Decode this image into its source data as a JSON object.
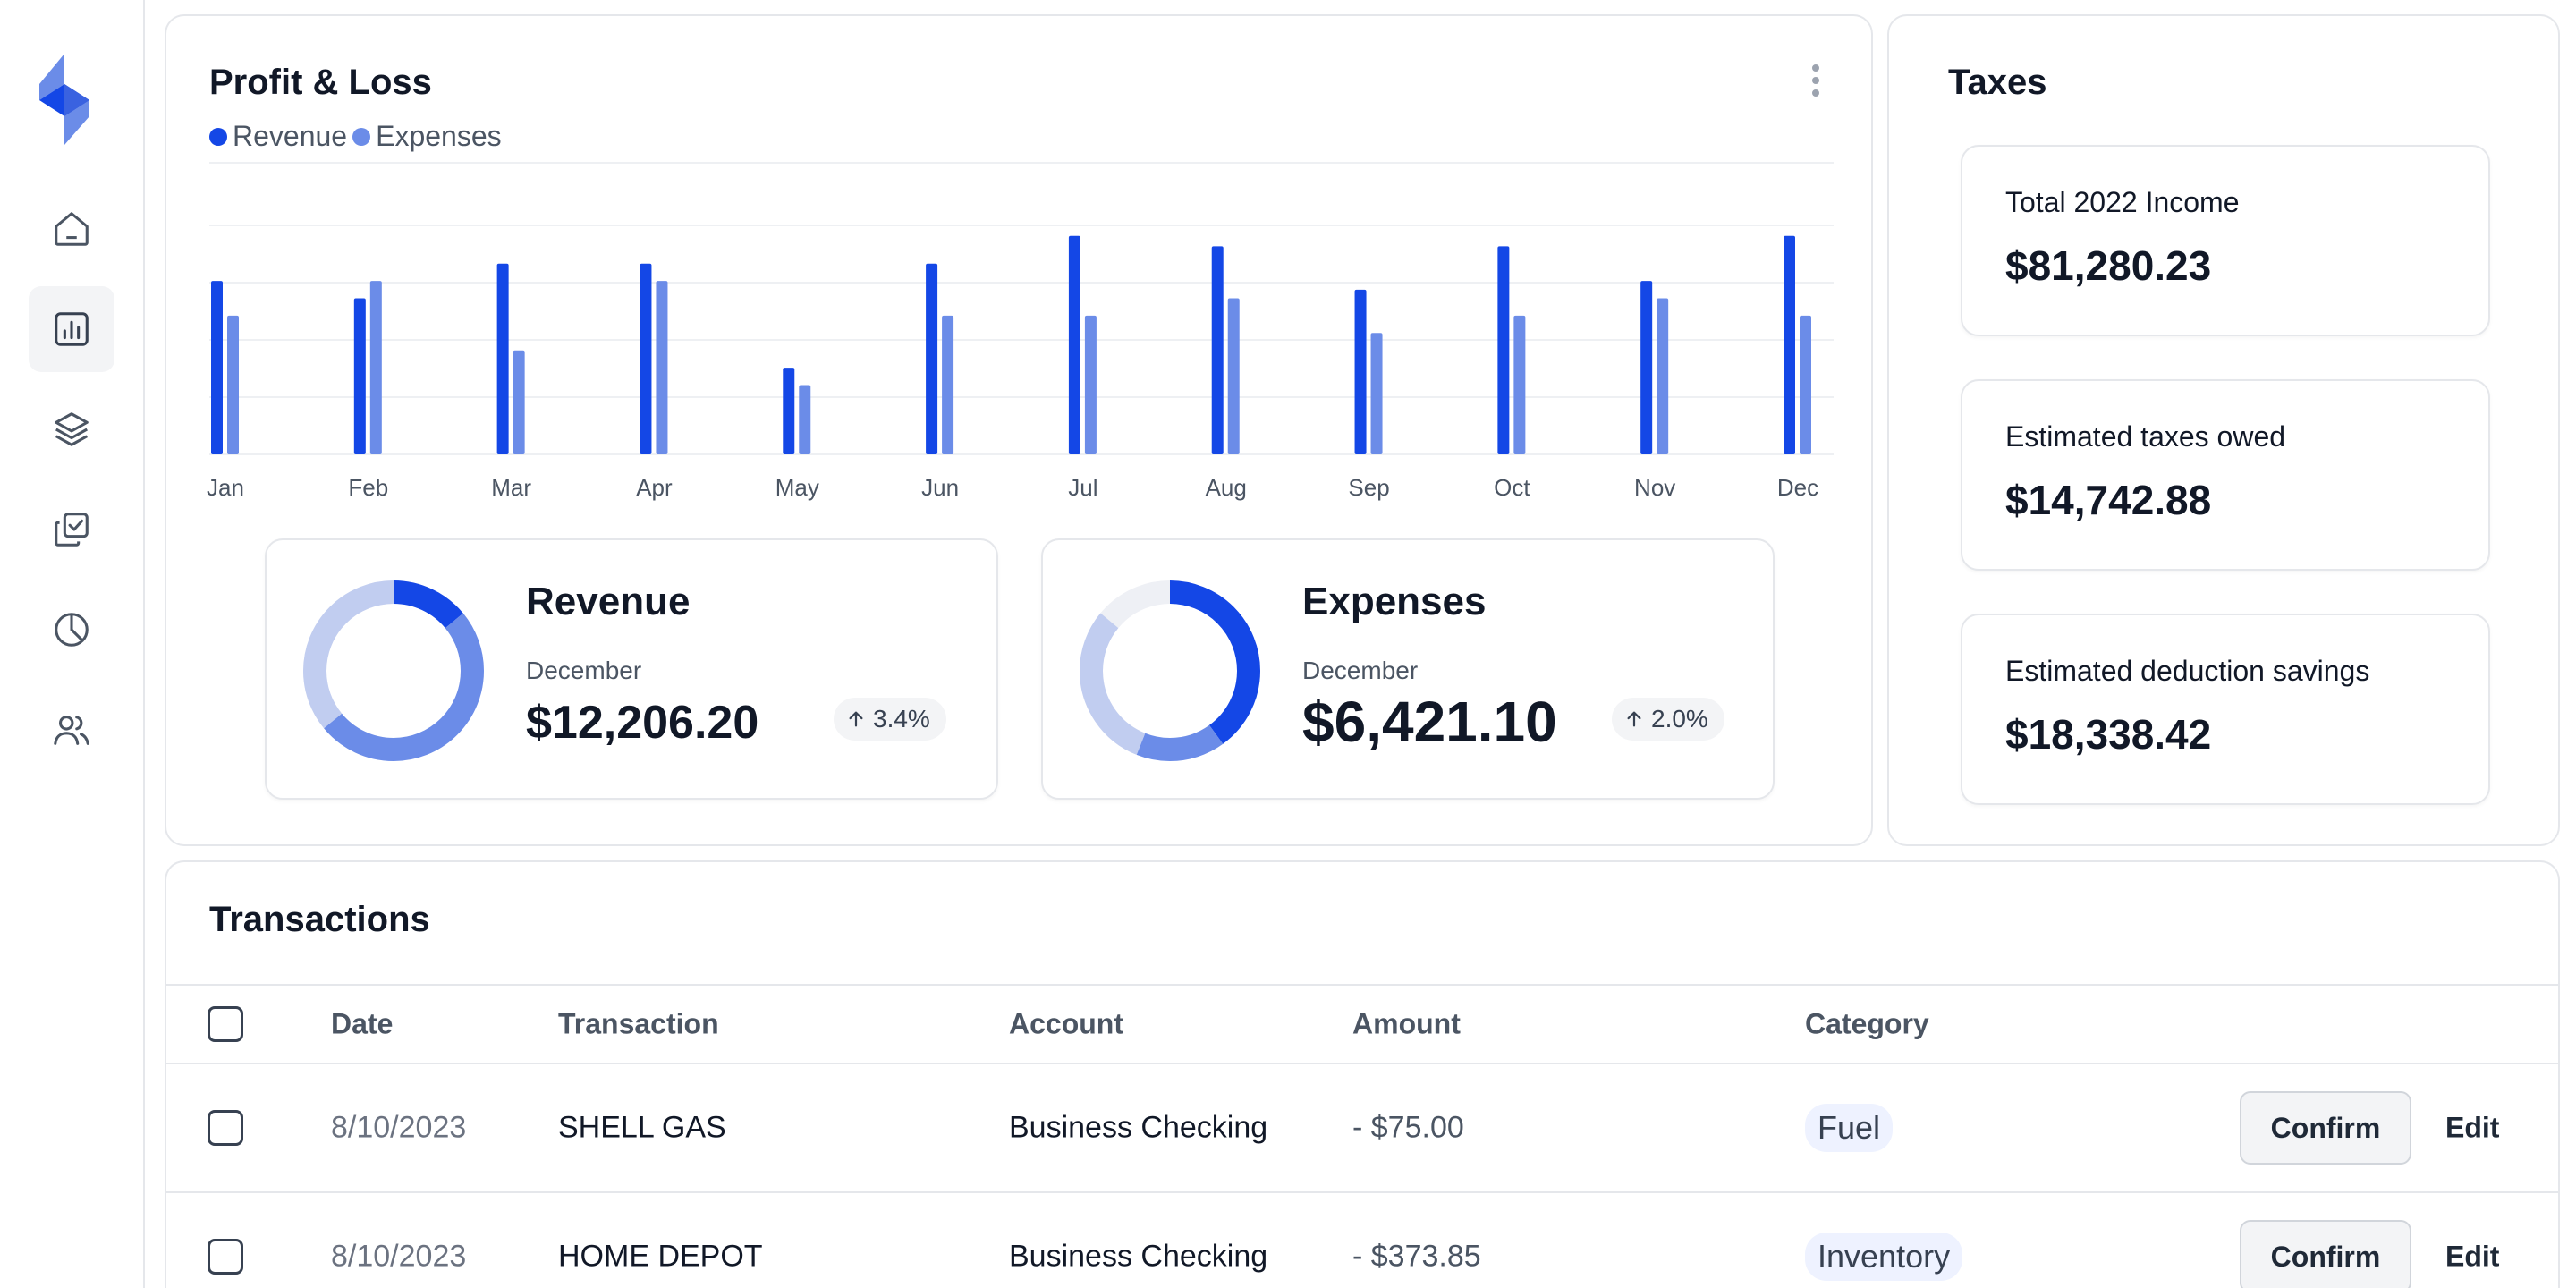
{
  "colors": {
    "revenue": "#1447e6",
    "expenses": "#6b8ce8",
    "donut_light": "#c1cdf0",
    "donut_track": "#eef0f5"
  },
  "sidebar": {
    "items": [
      {
        "icon": "home-icon",
        "active": false
      },
      {
        "icon": "bar-chart-icon",
        "active": true
      },
      {
        "icon": "layers-icon",
        "active": false
      },
      {
        "icon": "checklist-icon",
        "active": false
      },
      {
        "icon": "pie-chart-icon",
        "active": false
      },
      {
        "icon": "users-icon",
        "active": false
      }
    ]
  },
  "profit_loss": {
    "title": "Profit & Loss",
    "legend": [
      "Revenue",
      "Expenses"
    ],
    "menu_icon": "more-vertical-icon"
  },
  "chart_data": {
    "type": "bar",
    "title": "Profit & Loss",
    "categories": [
      "Jan",
      "Feb",
      "Mar",
      "Apr",
      "May",
      "Jun",
      "Jul",
      "Aug",
      "Sep",
      "Oct",
      "Nov",
      "Dec"
    ],
    "series": [
      {
        "name": "Revenue",
        "values": [
          10,
          9,
          11,
          11,
          5,
          11,
          12.6,
          12,
          9.5,
          12,
          10,
          12.6
        ]
      },
      {
        "name": "Expenses",
        "values": [
          8,
          10,
          6,
          10,
          4,
          8,
          8,
          9,
          7,
          8,
          9,
          8
        ]
      }
    ],
    "ylim": [
      0,
      13
    ],
    "grid": true,
    "legend_position": "top-left"
  },
  "revenue_card": {
    "title": "Revenue",
    "period": "December",
    "value": "$12,206.20",
    "change": "3.4%",
    "donut": [
      0.14,
      0.5,
      0.36
    ]
  },
  "expenses_card": {
    "title": "Expenses",
    "period": "December",
    "value": "$6,421.10",
    "change": "2.0%",
    "donut": [
      0.4,
      0.16,
      0.3
    ]
  },
  "taxes": {
    "title": "Taxes",
    "tiles": [
      {
        "label": "Total 2022 Income",
        "value": "$81,280.23"
      },
      {
        "label": "Estimated taxes owed",
        "value": "$14,742.88"
      },
      {
        "label": "Estimated deduction savings",
        "value": "$18,338.42"
      }
    ]
  },
  "transactions": {
    "title": "Transactions",
    "columns": [
      "Date",
      "Transaction",
      "Account",
      "Amount",
      "Category"
    ],
    "rows": [
      {
        "date": "8/10/2023",
        "transaction": "SHELL GAS",
        "account": "Business Checking",
        "amount": "- $75.00",
        "category": "Fuel",
        "confirm": "Confirm",
        "edit": "Edit"
      },
      {
        "date": "8/10/2023",
        "transaction": "HOME DEPOT",
        "account": "Business Checking",
        "amount": "- $373.85",
        "category": "Inventory",
        "confirm": "Confirm",
        "edit": "Edit"
      }
    ]
  }
}
